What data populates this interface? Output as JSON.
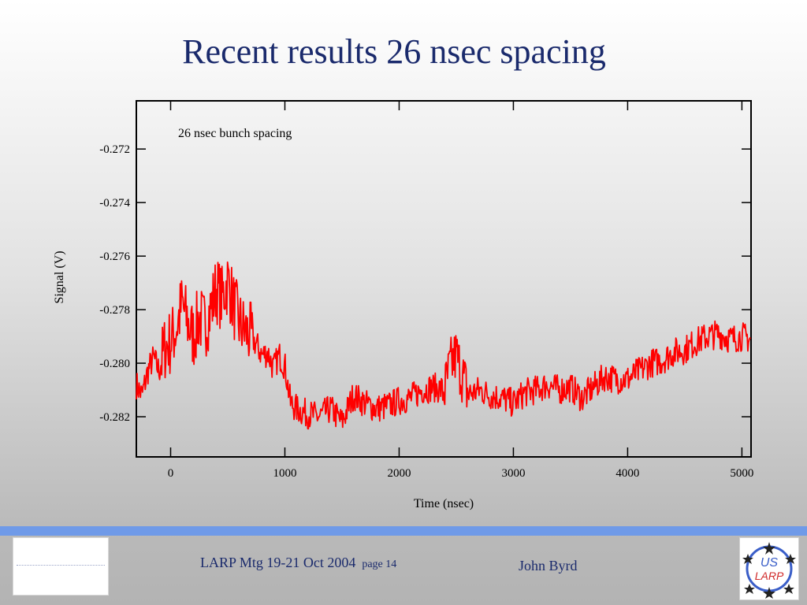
{
  "slide": {
    "title": "Recent results 26 nsec spacing"
  },
  "chart_data": {
    "type": "line",
    "annotation": "26 nsec bunch spacing",
    "xlabel": "Time (nsec)",
    "ylabel": "Signal (V)",
    "xlim": [
      -300,
      5080
    ],
    "ylim": [
      -0.2835,
      -0.2702
    ],
    "xticks": [
      0,
      1000,
      2000,
      3000,
      4000,
      5000
    ],
    "yticks": [
      -0.272,
      -0.274,
      -0.276,
      -0.278,
      -0.28,
      -0.282
    ],
    "xtick_labels": [
      "0",
      "1000",
      "2000",
      "3000",
      "4000",
      "5000"
    ],
    "ytick_labels": [
      "-0.272",
      "-0.274",
      "-0.276",
      "-0.278",
      "-0.280",
      "-0.282"
    ],
    "grid": false,
    "color": "#ff0000",
    "series": [
      {
        "x": [
          -300,
          -250,
          -200,
          -150,
          -100,
          -50,
          0,
          50,
          100,
          150,
          200,
          250,
          300,
          350,
          400,
          450,
          500,
          550,
          600,
          650,
          700,
          750,
          800,
          850,
          900,
          950,
          1000,
          1050,
          1100,
          1150,
          1200,
          1300,
          1400,
          1500,
          1600,
          1700,
          1800,
          1900,
          2000,
          2100,
          2200,
          2300,
          2400,
          2450,
          2500,
          2550,
          2600,
          2650,
          2700,
          2800,
          2900,
          3000,
          3100,
          3200,
          3300,
          3400,
          3500,
          3600,
          3700,
          3800,
          3900,
          4000,
          4100,
          4200,
          4300,
          4400,
          4500,
          4600,
          4700,
          4800,
          4900,
          5000,
          5080
        ],
        "y": [
          -0.2808,
          -0.2812,
          -0.2803,
          -0.2798,
          -0.2803,
          -0.2794,
          -0.2792,
          -0.2787,
          -0.2778,
          -0.2785,
          -0.279,
          -0.2783,
          -0.2786,
          -0.278,
          -0.2772,
          -0.2776,
          -0.2769,
          -0.2778,
          -0.2785,
          -0.2788,
          -0.279,
          -0.2793,
          -0.2797,
          -0.2796,
          -0.2802,
          -0.2797,
          -0.2801,
          -0.2815,
          -0.2817,
          -0.2818,
          -0.2819,
          -0.282,
          -0.2817,
          -0.2822,
          -0.2812,
          -0.2815,
          -0.2817,
          -0.2816,
          -0.2814,
          -0.2813,
          -0.281,
          -0.2809,
          -0.281,
          -0.2801,
          -0.2797,
          -0.2804,
          -0.2811,
          -0.2811,
          -0.281,
          -0.2812,
          -0.2813,
          -0.2815,
          -0.2811,
          -0.281,
          -0.2808,
          -0.281,
          -0.2809,
          -0.2813,
          -0.2809,
          -0.2805,
          -0.2806,
          -0.2806,
          -0.2803,
          -0.28,
          -0.2799,
          -0.2796,
          -0.2795,
          -0.2792,
          -0.279,
          -0.2789,
          -0.2791,
          -0.279,
          -0.2791
        ]
      }
    ]
  },
  "footer": {
    "meeting": "LARP Mtg 19-21 Oct 2004",
    "page": "page 14",
    "author": "John Byrd"
  },
  "logo": {
    "line1": "US",
    "line2": "LARP",
    "accent": "#3a5ec8",
    "accent2": "#d02a2a"
  }
}
